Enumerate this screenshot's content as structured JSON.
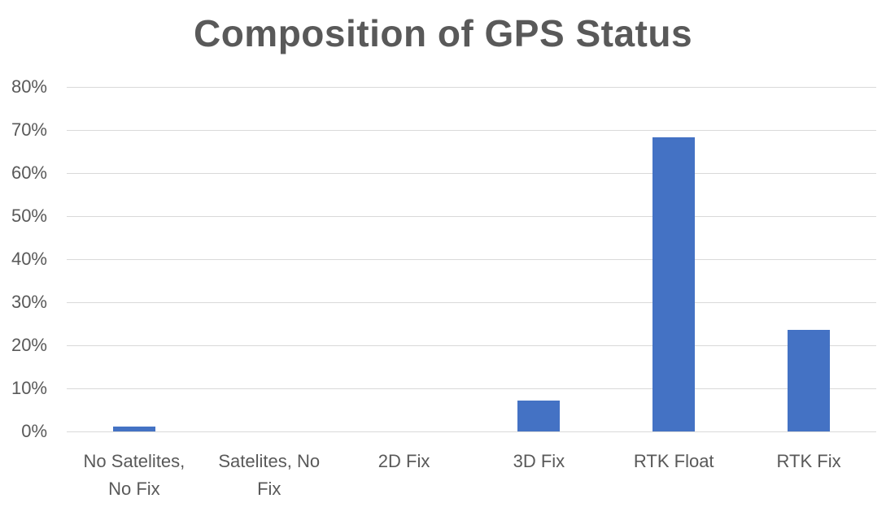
{
  "chart_data": {
    "type": "bar",
    "title": "Composition of GPS Status",
    "xlabel": "",
    "ylabel": "",
    "categories": [
      "No Satelites, No Fix",
      "Satelites, No Fix",
      "2D Fix",
      "3D Fix",
      "RTK Float",
      "RTK Fix"
    ],
    "category_lines": [
      [
        "No Satelites,",
        "No Fix"
      ],
      [
        "Satelites, No",
        "Fix"
      ],
      [
        "2D Fix"
      ],
      [
        "3D Fix"
      ],
      [
        "RTK Float"
      ],
      [
        "RTK Fix"
      ]
    ],
    "values": [
      1.2,
      0,
      0,
      7.2,
      68.3,
      23.6
    ],
    "value_format": "percent",
    "ylim": [
      0,
      80
    ],
    "yticks": [
      "0%",
      "10%",
      "20%",
      "30%",
      "40%",
      "50%",
      "60%",
      "70%",
      "80%"
    ],
    "grid": true,
    "legend": "none",
    "bar_color": "#4472c4"
  }
}
